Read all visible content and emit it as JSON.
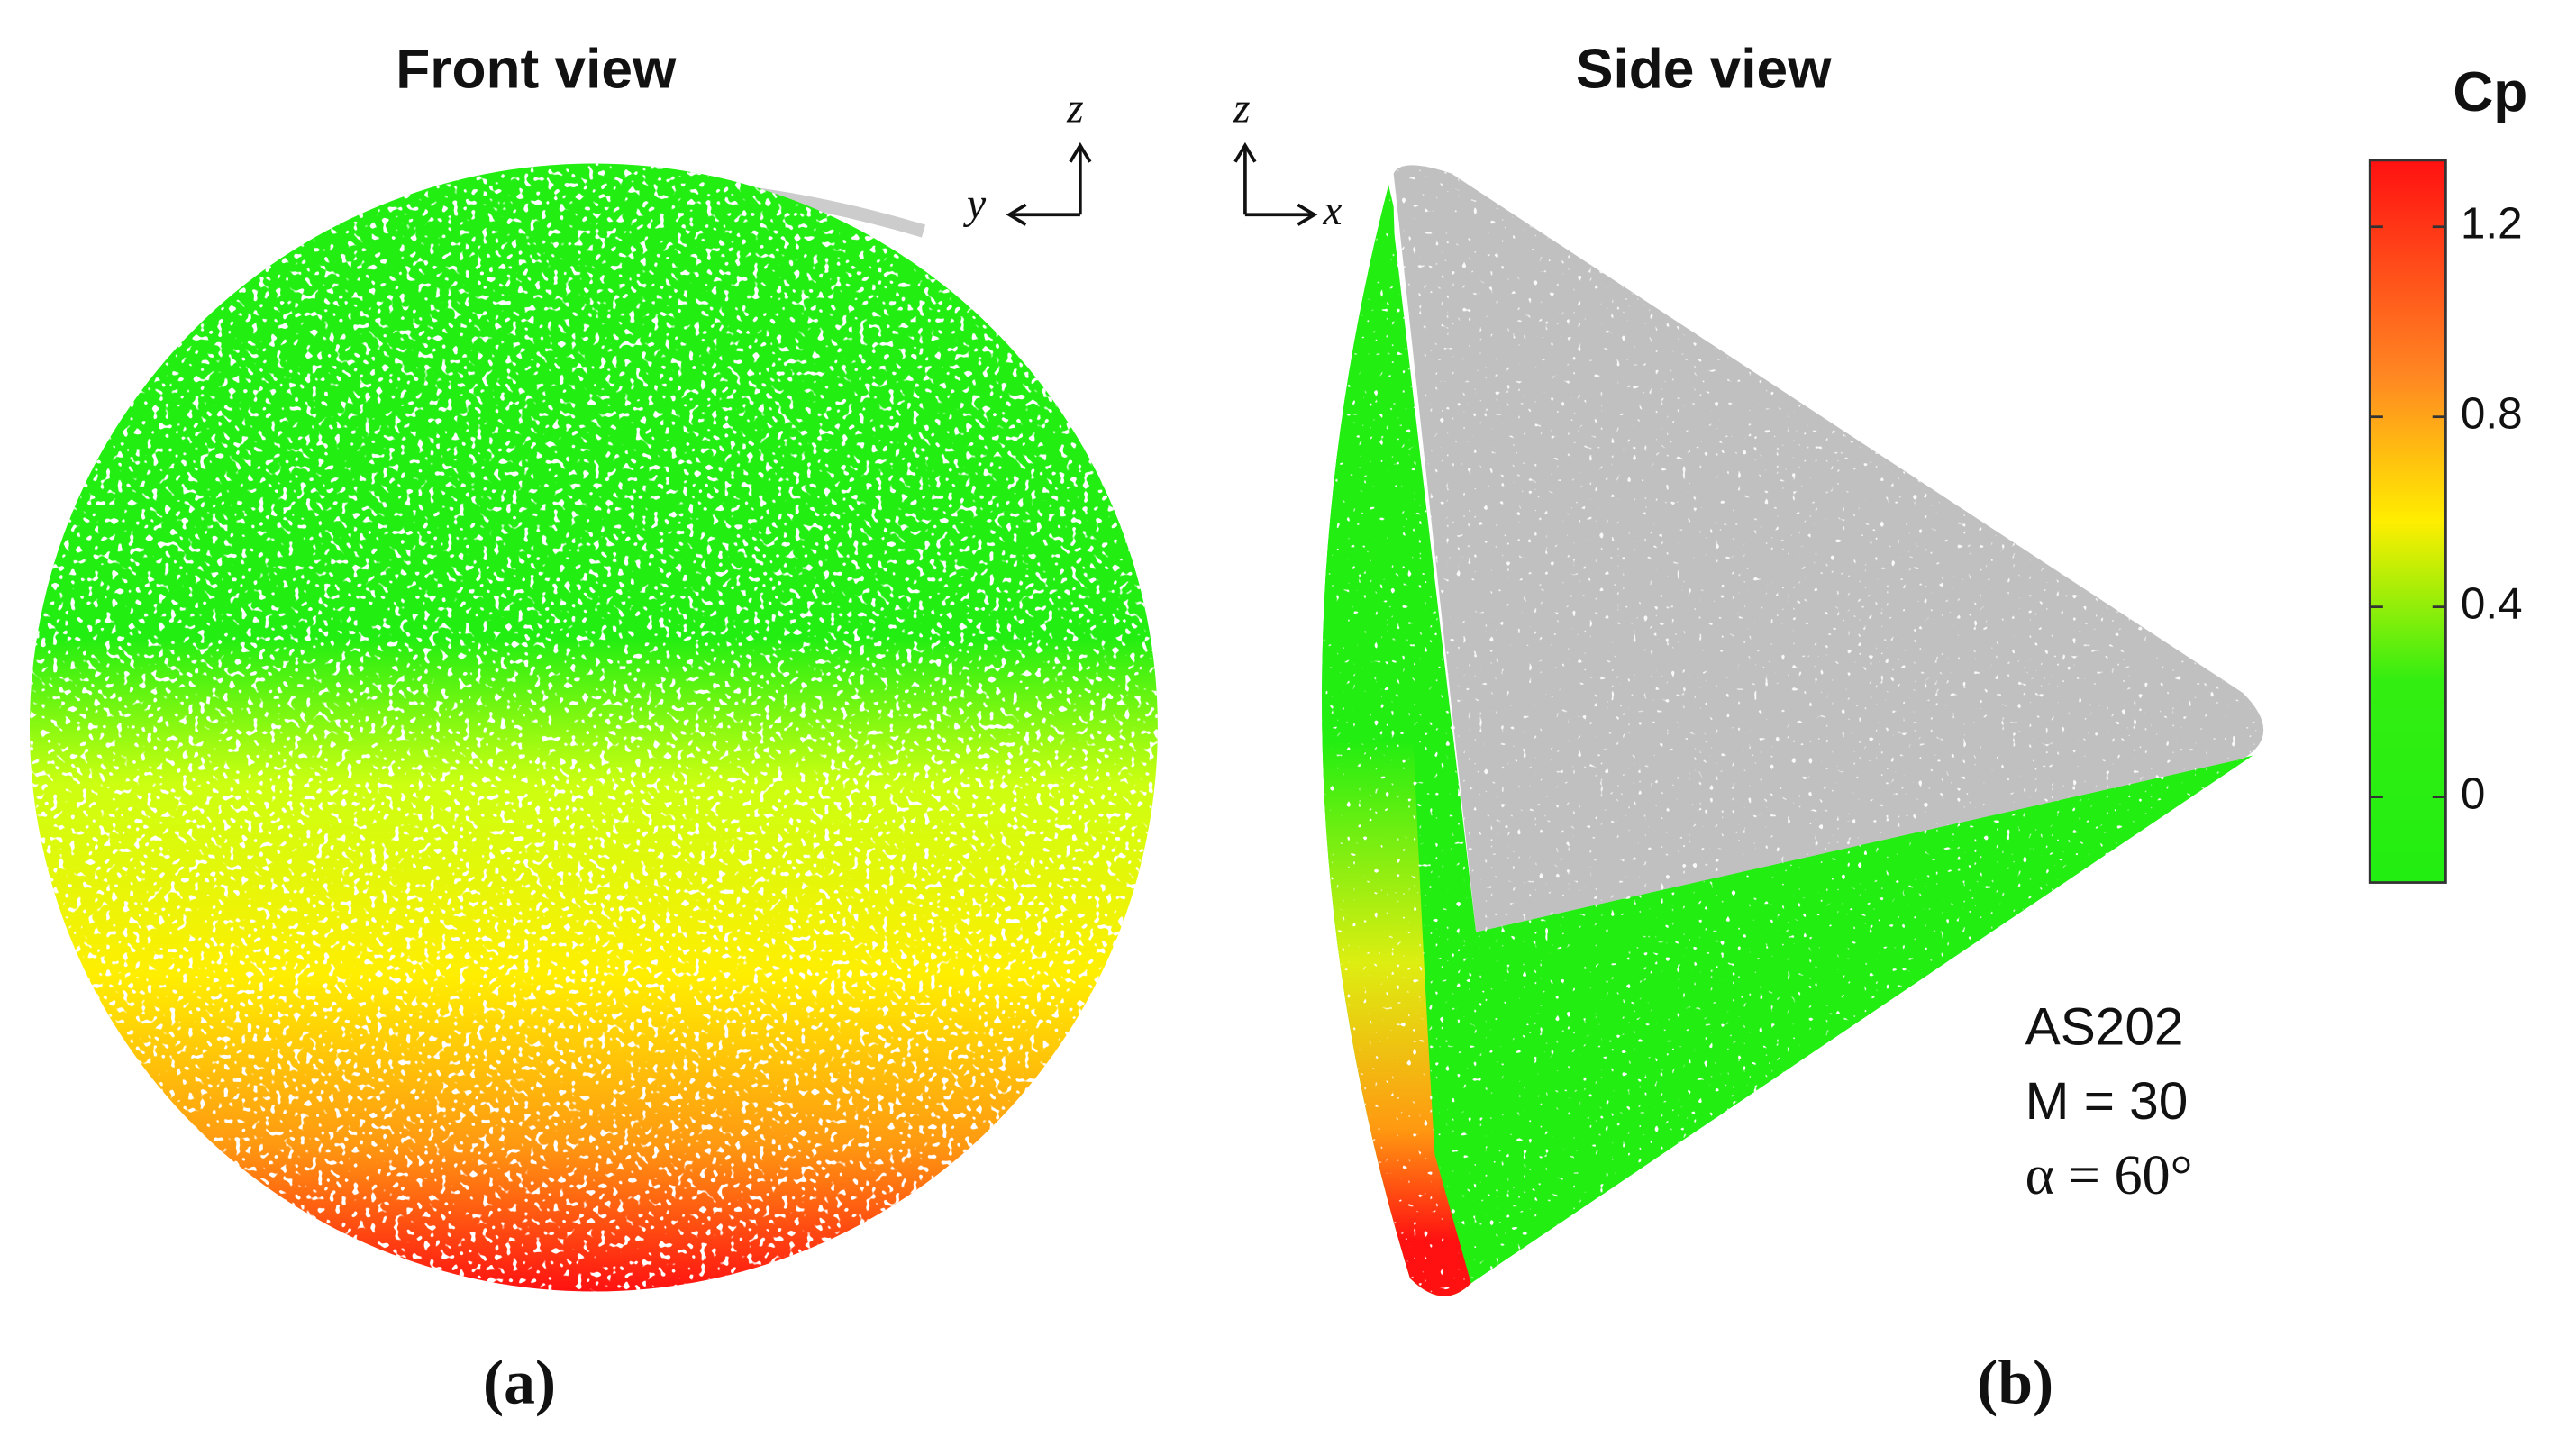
{
  "panels": [
    {
      "title": "Front view",
      "label": "(a)",
      "axes": [
        "z",
        "y"
      ]
    },
    {
      "title": "Side view",
      "label": "(b)",
      "axes": [
        "z",
        "x"
      ],
      "annotations": [
        "AS202",
        "M = 30",
        "α = 60°"
      ]
    }
  ],
  "colorbar": {
    "title": "Cp",
    "lim": [
      -0.18,
      1.34
    ],
    "ticks": [
      0,
      0.4,
      0.8,
      1.2
    ]
  }
}
